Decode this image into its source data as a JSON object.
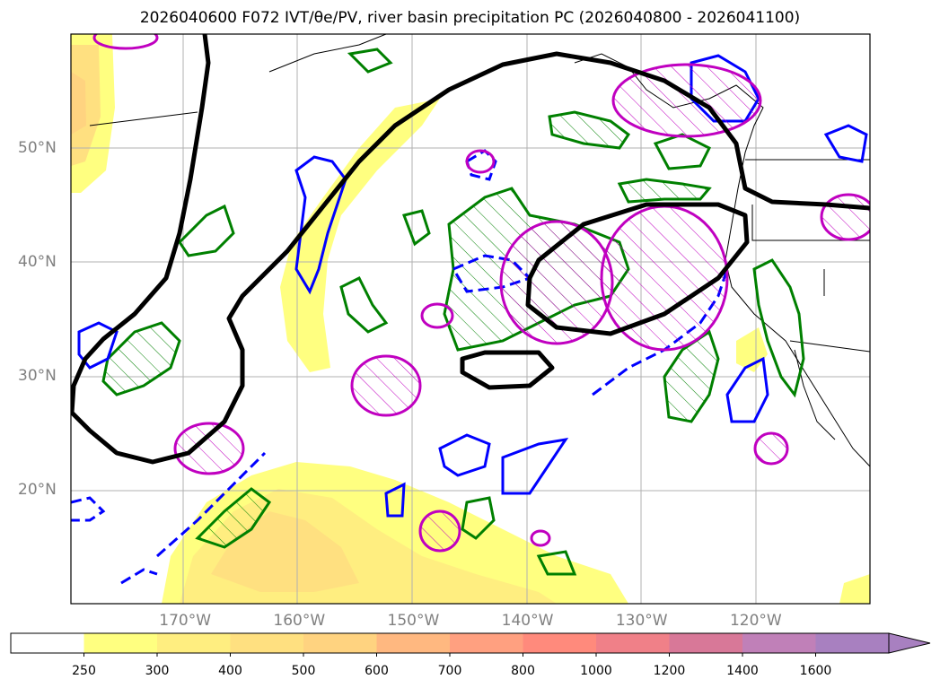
{
  "title": "2026040600 F072 IVT/θe/PV, river basin precipitation PC (2026040800 - 2026041100)",
  "map": {
    "extent_lon": [
      -180,
      -110
    ],
    "extent_lat": [
      10,
      60
    ],
    "lon_labels": [
      {
        "lon": -170,
        "label": "170°W"
      },
      {
        "lon": -160,
        "label": "160°W"
      },
      {
        "lon": -150,
        "label": "150°W"
      },
      {
        "lon": -140,
        "label": "140°W"
      },
      {
        "lon": -130,
        "label": "130°W"
      },
      {
        "lon": -120,
        "label": "120°W"
      }
    ],
    "lat_labels": [
      {
        "lat": 50,
        "label": "50°N"
      },
      {
        "lat": 40,
        "label": "40°N"
      },
      {
        "lat": 30,
        "label": "30°N"
      },
      {
        "lat": 20,
        "label": "20°N"
      }
    ],
    "contour_colors": {
      "pv": "#000000",
      "theta_e": "#008000",
      "ivt_dashed": "#0000ff",
      "precip_pc": "#c000c0"
    }
  },
  "colorbar": {
    "ticks": [
      "250",
      "300",
      "400",
      "500",
      "600",
      "700",
      "800",
      "1000",
      "1200",
      "1400",
      "1600"
    ],
    "colors": [
      "#ffffff",
      "#ffff80",
      "#ffee80",
      "#ffe080",
      "#ffd380",
      "#ffb880",
      "#ffa080",
      "#ff8a7c",
      "#f08088",
      "#d87898",
      "#c080b8",
      "#a880c0"
    ]
  }
}
